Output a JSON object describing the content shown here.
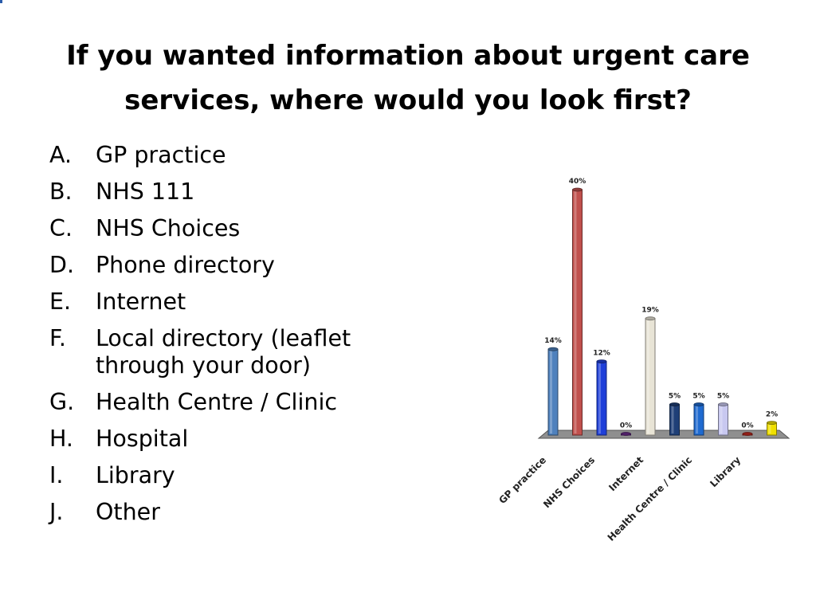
{
  "slide": {
    "title": "If you wanted information about urgent care services, where would you look first?"
  },
  "options": [
    {
      "letter": "A.",
      "text": "GP practice"
    },
    {
      "letter": "B.",
      "text": "NHS 111"
    },
    {
      "letter": "C.",
      "text": "NHS Choices"
    },
    {
      "letter": "D.",
      "text": "Phone directory"
    },
    {
      "letter": "E.",
      "text": "Internet"
    },
    {
      "letter": "F.",
      "text": "Local directory (leaflet through your door)"
    },
    {
      "letter": "G.",
      "text": "Health Centre / Clinic"
    },
    {
      "letter": "H.",
      "text": "Hospital"
    },
    {
      "letter": "I.",
      "text": "Library"
    },
    {
      "letter": "J.",
      "text": "Other"
    }
  ],
  "chart_data": {
    "type": "bar",
    "categories": [
      "GP practice",
      "NHS 111",
      "NHS Choices",
      "Phone directory",
      "Internet",
      "Local directory (leaflet through your door)",
      "Health Centre / Clinic",
      "Hospital",
      "Library",
      "Other"
    ],
    "values": [
      14,
      40,
      12,
      0,
      19,
      5,
      5,
      5,
      0,
      2
    ],
    "data_labels": [
      "14%",
      "40%",
      "12%",
      "0%",
      "19%",
      "5%",
      "5%",
      "5%",
      "0%",
      "2%"
    ],
    "shown_tick_labels": [
      "GP practice",
      "NHS Choices",
      "Internet",
      "Health Centre / Clinic",
      "Library"
    ],
    "colors": [
      "#4f81bd",
      "#c0504d",
      "#1f3fd9",
      "#6a2a8a",
      "#e8e4d6",
      "#1f3f77",
      "#1f6ad0",
      "#c8c8f0",
      "#c0281e",
      "#f0e000"
    ],
    "ylim": [
      0,
      40
    ],
    "grid": false,
    "legend": "none",
    "title": "",
    "xlabel": "",
    "ylabel": ""
  }
}
